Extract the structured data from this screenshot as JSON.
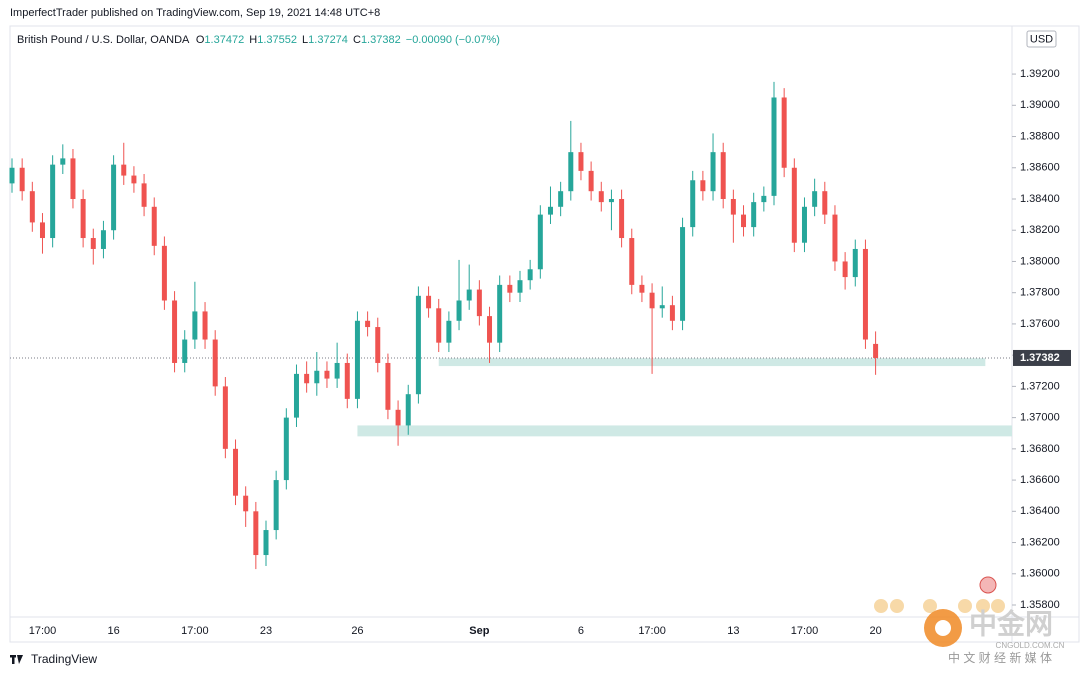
{
  "header": {
    "published": "ImperfectTrader published on TradingView.com, Sep 19, 2021 14:48 UTC+8"
  },
  "legend": {
    "symbol": "British Pound / U.S. Dollar, OANDA",
    "o_label": "O",
    "o": "1.37472",
    "h_label": "H",
    "h": "1.37552",
    "l_label": "L",
    "l": "1.37274",
    "c_label": "C",
    "c": "1.37382",
    "change": "−0.00090 (−0.07%)"
  },
  "currency": "USD",
  "footer": {
    "brand": "TradingView"
  },
  "watermark": {
    "name": "中金网",
    "site": "CNGOLD.COM.CN",
    "tagline": "中 文 财 经 新 媒 体"
  },
  "chart_data": {
    "type": "candlestick",
    "up_color": "#26a69a",
    "down_color": "#ef5350",
    "categories": [
      null,
      null,
      null,
      "17:00",
      null,
      null,
      null,
      null,
      null,
      null,
      "16",
      null,
      null,
      null,
      null,
      null,
      null,
      null,
      "17:00",
      null,
      null,
      null,
      null,
      null,
      null,
      "23",
      null,
      null,
      null,
      null,
      null,
      null,
      null,
      null,
      "26",
      null,
      null,
      null,
      null,
      null,
      null,
      null,
      null,
      null,
      null,
      null,
      "Sep",
      null,
      null,
      null,
      null,
      null,
      null,
      null,
      null,
      null,
      "6",
      null,
      null,
      null,
      null,
      null,
      null,
      "17:00",
      null,
      null,
      null,
      null,
      null,
      null,
      null,
      "13",
      null,
      null,
      null,
      null,
      null,
      null,
      "17:00",
      null,
      null,
      null,
      null,
      null,
      null,
      "20"
    ],
    "open": [
      1.385,
      1.386,
      1.3845,
      1.3825,
      1.3815,
      1.3862,
      1.3866,
      1.384,
      1.3815,
      1.3808,
      1.382,
      1.3862,
      1.3855,
      1.385,
      1.3835,
      1.381,
      1.3775,
      1.3735,
      1.375,
      1.3768,
      1.375,
      1.372,
      1.368,
      1.365,
      1.364,
      1.3612,
      1.3628,
      1.366,
      1.37,
      1.3728,
      1.3722,
      1.373,
      1.3725,
      1.3735,
      1.3712,
      1.3762,
      1.3758,
      1.3735,
      1.3705,
      1.3695,
      1.3715,
      1.3778,
      1.377,
      1.3748,
      1.3762,
      1.3775,
      1.3782,
      1.3765,
      1.3748,
      1.3785,
      1.378,
      1.3788,
      1.3795,
      1.383,
      1.3835,
      1.3845,
      1.387,
      1.3858,
      1.3845,
      1.3838,
      1.384,
      1.3815,
      1.3785,
      1.378,
      1.377,
      1.3772,
      1.3762,
      1.3822,
      1.3852,
      1.3845,
      1.387,
      1.384,
      1.383,
      1.3822,
      1.3838,
      1.3842,
      1.3905,
      1.386,
      1.3812,
      1.3835,
      1.3845,
      1.383,
      1.38,
      1.379,
      1.3808,
      1.37472
    ],
    "high": [
      1.3866,
      1.3866,
      1.3851,
      1.3831,
      1.3868,
      1.3875,
      1.3872,
      1.3846,
      1.3821,
      1.3826,
      1.3868,
      1.3876,
      1.3861,
      1.3856,
      1.3841,
      1.3816,
      1.3781,
      1.3756,
      1.3787,
      1.3774,
      1.3756,
      1.3726,
      1.3686,
      1.3656,
      1.3646,
      1.3634,
      1.3666,
      1.3706,
      1.3734,
      1.3736,
      1.3742,
      1.3736,
      1.3748,
      1.3741,
      1.3768,
      1.3768,
      1.3764,
      1.3741,
      1.3711,
      1.3721,
      1.3784,
      1.3784,
      1.3776,
      1.3768,
      1.3801,
      1.3798,
      1.3788,
      1.3771,
      1.3791,
      1.3791,
      1.3794,
      1.3801,
      1.3836,
      1.3848,
      1.3851,
      1.389,
      1.3876,
      1.3864,
      1.3851,
      1.3846,
      1.3846,
      1.3821,
      1.3791,
      1.3786,
      1.3784,
      1.3778,
      1.3828,
      1.3858,
      1.3858,
      1.3882,
      1.3876,
      1.3846,
      1.3836,
      1.3844,
      1.3848,
      1.3915,
      1.3911,
      1.3866,
      1.3841,
      1.3853,
      1.3851,
      1.3836,
      1.3806,
      1.3814,
      1.3814,
      1.37552
    ],
    "low": [
      1.3844,
      1.3839,
      1.3819,
      1.3805,
      1.3809,
      1.3856,
      1.3834,
      1.3809,
      1.3798,
      1.3802,
      1.3814,
      1.3849,
      1.3844,
      1.3829,
      1.3804,
      1.3769,
      1.3729,
      1.3729,
      1.3744,
      1.3744,
      1.3714,
      1.3674,
      1.3644,
      1.363,
      1.3603,
      1.3605,
      1.3622,
      1.3654,
      1.3694,
      1.3716,
      1.3714,
      1.3719,
      1.3719,
      1.3706,
      1.3706,
      1.3752,
      1.3729,
      1.3699,
      1.3682,
      1.3689,
      1.3709,
      1.3764,
      1.3742,
      1.3742,
      1.3756,
      1.3769,
      1.3759,
      1.3735,
      1.3742,
      1.3774,
      1.3774,
      1.3782,
      1.3789,
      1.3824,
      1.3829,
      1.3839,
      1.3852,
      1.3839,
      1.3832,
      1.382,
      1.3809,
      1.3779,
      1.3774,
      1.3728,
      1.3764,
      1.3756,
      1.3756,
      1.3816,
      1.3839,
      1.3839,
      1.3834,
      1.3812,
      1.3816,
      1.3816,
      1.3832,
      1.3836,
      1.3854,
      1.3806,
      1.3806,
      1.3829,
      1.3824,
      1.3794,
      1.3782,
      1.3784,
      1.3744,
      1.37274
    ],
    "close": [
      1.386,
      1.3845,
      1.3825,
      1.3815,
      1.3862,
      1.3866,
      1.384,
      1.3815,
      1.3808,
      1.382,
      1.3862,
      1.3855,
      1.385,
      1.3835,
      1.381,
      1.3775,
      1.3735,
      1.375,
      1.3768,
      1.375,
      1.372,
      1.368,
      1.365,
      1.364,
      1.3612,
      1.3628,
      1.366,
      1.37,
      1.3728,
      1.3722,
      1.373,
      1.3725,
      1.3735,
      1.3712,
      1.3762,
      1.3758,
      1.3735,
      1.3705,
      1.3695,
      1.3715,
      1.3778,
      1.377,
      1.3748,
      1.3762,
      1.3775,
      1.3782,
      1.3765,
      1.3748,
      1.3785,
      1.378,
      1.3788,
      1.3795,
      1.383,
      1.3835,
      1.3845,
      1.387,
      1.3858,
      1.3845,
      1.3838,
      1.384,
      1.3815,
      1.3785,
      1.378,
      1.377,
      1.3772,
      1.3762,
      1.3822,
      1.3852,
      1.3845,
      1.387,
      1.384,
      1.383,
      1.3822,
      1.3838,
      1.3842,
      1.3905,
      1.386,
      1.3812,
      1.3835,
      1.3845,
      1.383,
      1.38,
      1.379,
      1.3808,
      1.375,
      1.37382
    ],
    "last_price": {
      "value": 1.37382,
      "label": "1.37382"
    },
    "zones": [
      {
        "low": 1.3733,
        "high": 1.3738,
        "start": 42,
        "end": 95.8,
        "color": "#cfe9e5"
      },
      {
        "low": 1.3688,
        "high": 1.3695,
        "start": 34,
        "end": 98.6,
        "color": "#cfe9e5"
      }
    ],
    "ylim": [
      1.35736,
      1.39495
    ],
    "yticks": [
      {
        "value": 1.358,
        "label": "1.35800"
      },
      {
        "value": 1.36,
        "label": "1.36000"
      },
      {
        "value": 1.362,
        "label": "1.36200"
      },
      {
        "value": 1.364,
        "label": "1.36400"
      },
      {
        "value": 1.366,
        "label": "1.36600"
      },
      {
        "value": 1.368,
        "label": "1.36800"
      },
      {
        "value": 1.37,
        "label": "1.37000"
      },
      {
        "value": 1.372,
        "label": "1.37200"
      },
      {
        "value": 1.374,
        "label": "1.37400"
      },
      {
        "value": 1.376,
        "label": "1.37600"
      },
      {
        "value": 1.378,
        "label": "1.37800"
      },
      {
        "value": 1.38,
        "label": "1.38000"
      },
      {
        "value": 1.382,
        "label": "1.38200"
      },
      {
        "value": 1.384,
        "label": "1.38400"
      },
      {
        "value": 1.386,
        "label": "1.38600"
      },
      {
        "value": 1.388,
        "label": "1.38800"
      },
      {
        "value": 1.39,
        "label": "1.39000"
      },
      {
        "value": 1.392,
        "label": "1.39200"
      }
    ]
  }
}
